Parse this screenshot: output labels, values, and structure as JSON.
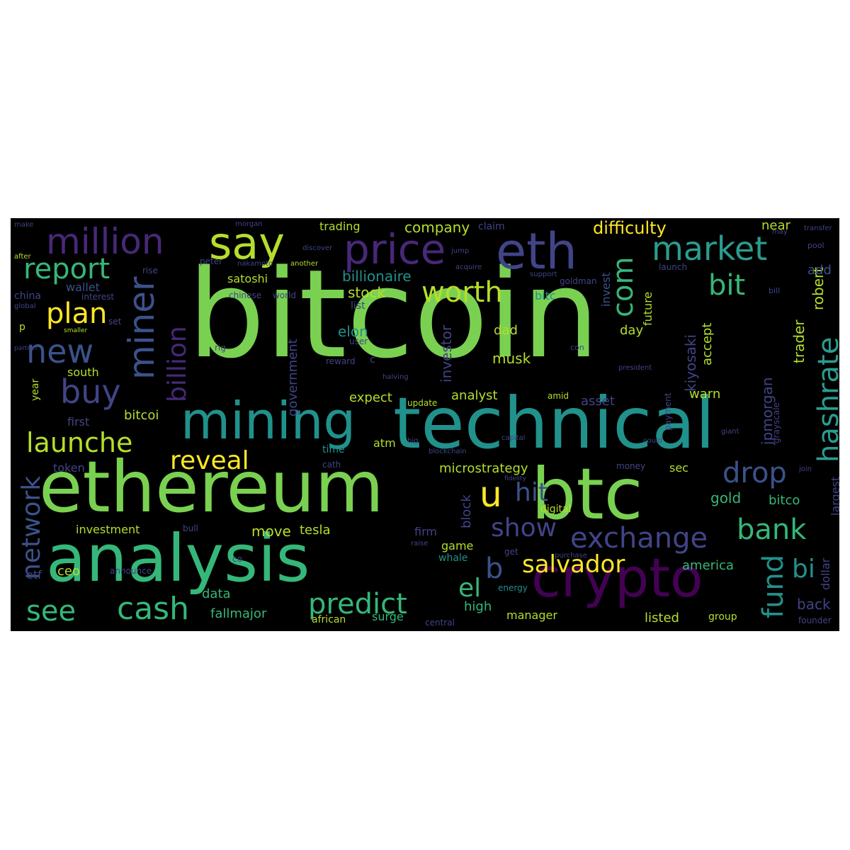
{
  "palette": {
    "green": "#7ad151",
    "teal": "#2a9d8f",
    "cyan": "#21918c",
    "mint": "#35b779",
    "yellow": "#fde725",
    "lime": "#b5de2b",
    "blue": "#3b528b",
    "indigo": "#414487",
    "purple": "#440154",
    "violet": "#482878",
    "background": "#000000"
  },
  "words": {
    "bitcoin": "bitcoin",
    "technical": "technical",
    "ethereum": "ethereum",
    "analysis": "analysis",
    "btc": "btc",
    "mining": "mining",
    "crypto": "crypto",
    "eth": "eth",
    "price": "price",
    "say": "say",
    "million": "million",
    "market": "market",
    "new": "new",
    "miner": "miner",
    "buy": "buy",
    "report": "report",
    "plan": "plan",
    "launche": "launche",
    "billion": "billion",
    "worth": "worth",
    "com": "com",
    "bit": "bit",
    "hashrate": "hashrate",
    "reveal": "reveal",
    "u": "u",
    "drop": "drop",
    "hit": "hit",
    "show": "show",
    "exchange": "exchange",
    "bank": "bank",
    "salvador": "salvador",
    "cash": "cash",
    "predict": "predict",
    "network": "network",
    "see": "see",
    "el": "el",
    "b": "b",
    "fund": "fund",
    "bi": "bi",
    "difficulty": "difficulty",
    "company": "company",
    "trading": "trading",
    "near": "near",
    "billionaire": "billionaire",
    "stock": "stock",
    "satoshi": "satoshi",
    "wallet": "wallet",
    "elon": "elon",
    "musk": "musk",
    "investor": "investor",
    "government": "government",
    "kiyosaki": "kiyosaki",
    "robert": "robert",
    "trader": "trader",
    "jpmorgan": "jpmorgan",
    "accept": "accept",
    "future": "future",
    "invest": "invest",
    "bitc": "bitc",
    "add": "add",
    "dad": "dad",
    "day": "day",
    "south": "south",
    "year": "year",
    "first": "first",
    "bitcoi": "bitcoi",
    "token": "token",
    "expect": "expect",
    "analyst": "analyst",
    "asset": "asset",
    "warn": "warn",
    "atm": "atm",
    "time": "time",
    "microstrategy": "microstrategy",
    "sec": "sec",
    "block": "block",
    "digital": "digital",
    "gold": "gold",
    "bitco": "bitco",
    "investment": "investment",
    "move": "move",
    "tesla": "tesla",
    "firm": "firm",
    "game": "game",
    "whale": "whale",
    "america": "america",
    "dollar": "dollar",
    "largest": "largest",
    "ceo": "ceo",
    "etf": "etf",
    "data": "data",
    "fallmajor": "fallmajor",
    "african": "african",
    "surge": "surge",
    "high": "high",
    "manager": "manager",
    "listed": "listed",
    "group": "group",
    "back": "back",
    "energy": "energy",
    "founder": "founder",
    "world": "world",
    "china": "china",
    "interest": "interest",
    "rise": "rise",
    "set": "set",
    "p": "p",
    "peter": "peter",
    "chinese": "chinese",
    "list": "list",
    "user": "user",
    "reward": "reward",
    "c": "c",
    "goldman": "goldman",
    "update": "update",
    "amid": "amid",
    "launch": "launch",
    "claim": "claim",
    "payment": "payment",
    "grayscale": "grayscale",
    "money": "money",
    "bull": "bull",
    "co": "co",
    "central": "central",
    "announce": "announce",
    "get": "get",
    "capital": "capital",
    "halving": "halving",
    "pool": "pool",
    "transfer": "transfer",
    "bill": "bill",
    "con": "con",
    "president": "president",
    "giant": "giant",
    "raise": "raise",
    "blockchain": "blockchain",
    "another": "another",
    "support": "support",
    "acquire": "acquire",
    "nakamoto": "nakamoto",
    "discover": "discover",
    "morgan": "morgan",
    "jump": "jump",
    "may": "may",
    "make": "make",
    "after": "after",
    "global": "global",
    "smaller": "smaller",
    "partner": "partner",
    "cath": "cath",
    "purchase": "purchase",
    "could": "could",
    "join": "join",
    "fidelity": "fidelity",
    "rig": "rig",
    "big": "big"
  }
}
